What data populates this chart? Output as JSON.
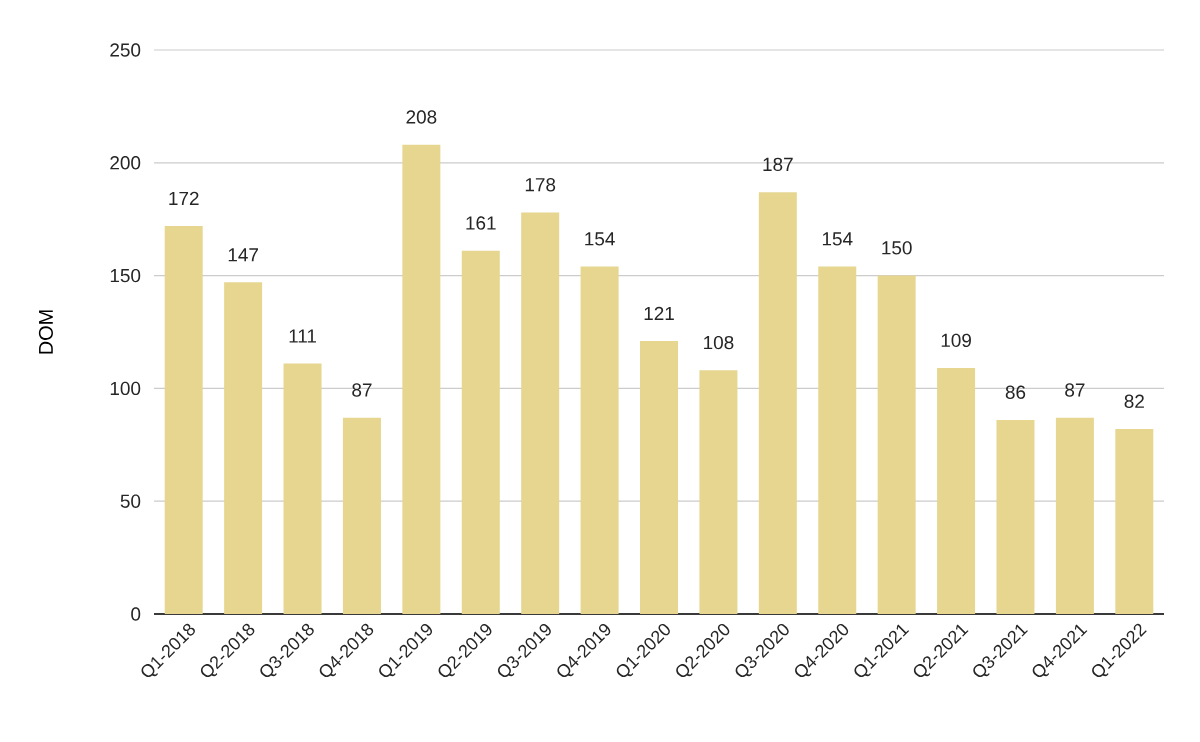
{
  "chart_data": {
    "type": "bar",
    "ylabel": "DOM",
    "categories": [
      "Q1-2018",
      "Q2-2018",
      "Q3-2018",
      "Q4-2018",
      "Q1-2019",
      "Q2-2019",
      "Q3-2019",
      "Q4-2019",
      "Q1-2020",
      "Q2-2020",
      "Q3-2020",
      "Q4-2020",
      "Q1-2021",
      "Q2-2021",
      "Q3-2021",
      "Q4-2021",
      "Q1-2022"
    ],
    "values": [
      172,
      147,
      111,
      87,
      208,
      161,
      178,
      154,
      121,
      108,
      187,
      154,
      150,
      109,
      86,
      87,
      82
    ],
    "color": "#e6d690",
    "ylim": [
      0,
      250
    ],
    "yticks": [
      0,
      50,
      100,
      150,
      200,
      250
    ],
    "grid": "y",
    "data_labels": true
  }
}
